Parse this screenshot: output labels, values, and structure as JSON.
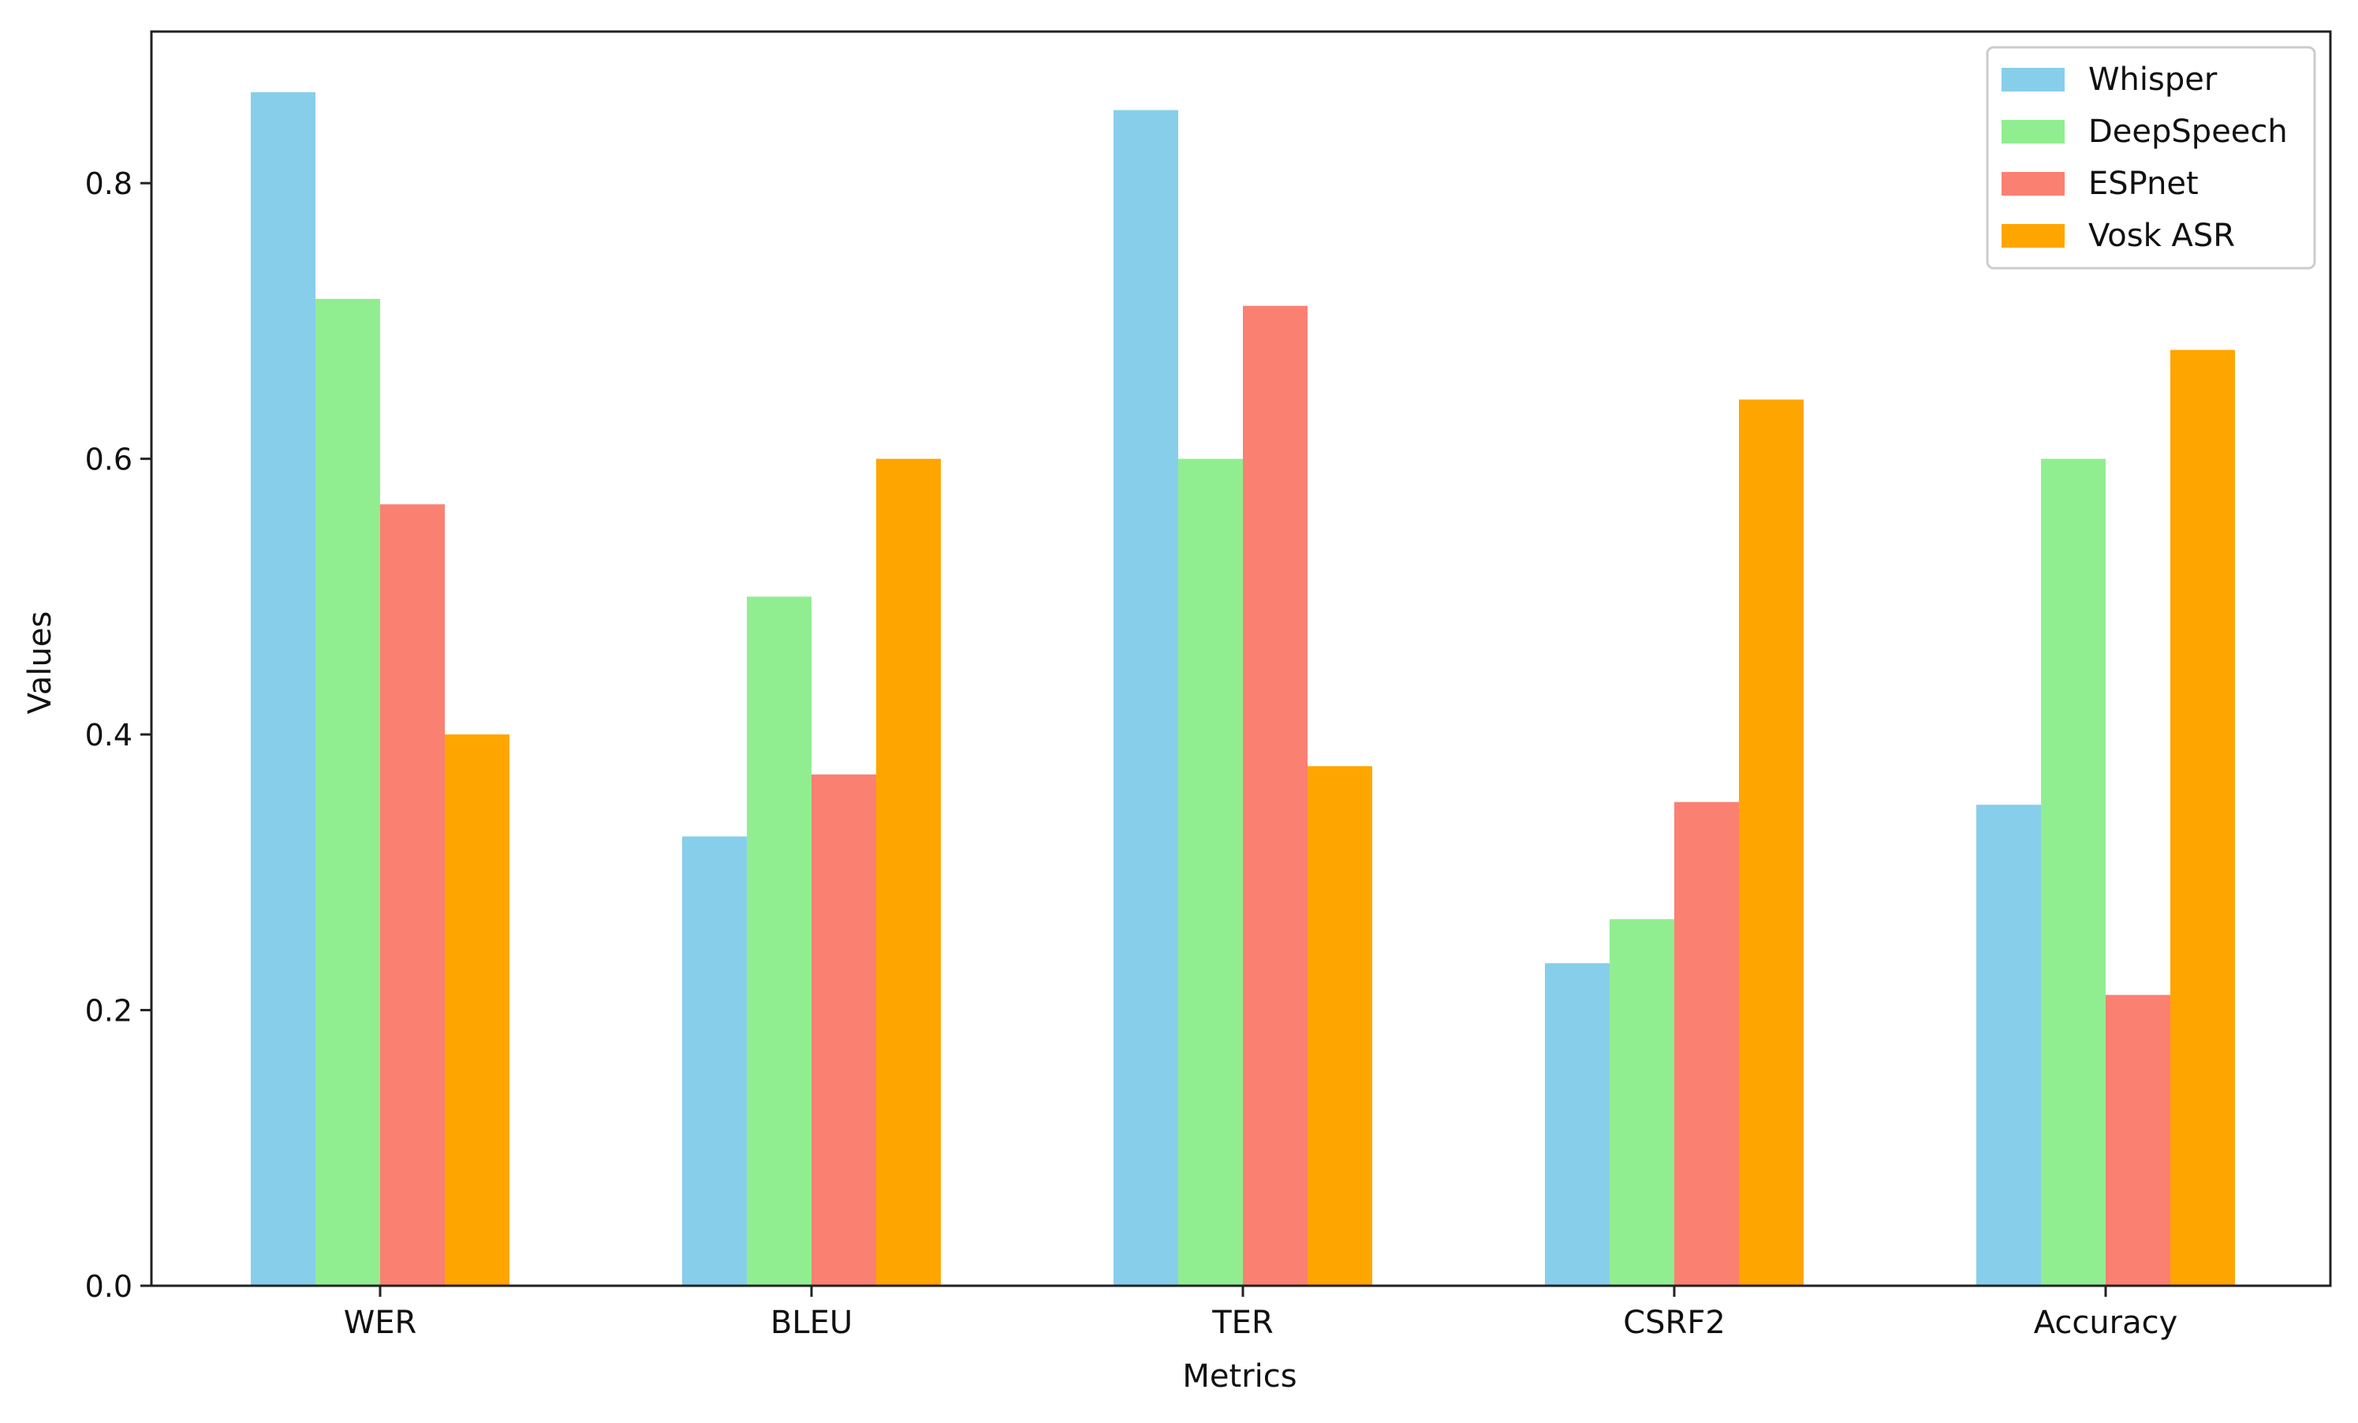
{
  "chart_data": {
    "type": "bar",
    "title": "",
    "xlabel": "Metrics",
    "ylabel": "Values",
    "categories": [
      "WER",
      "BLEU",
      "TER",
      "CSRF2",
      "Accuracy"
    ],
    "series": [
      {
        "name": "Whisper",
        "color": "#87ceeb",
        "values": [
          0.866,
          0.326,
          0.853,
          0.234,
          0.349
        ]
      },
      {
        "name": "DeepSpeech",
        "color": "#90ee90",
        "values": [
          0.716,
          0.5,
          0.6,
          0.266,
          0.6
        ]
      },
      {
        "name": "ESPnet",
        "color": "#fa8072",
        "values": [
          0.567,
          0.371,
          0.711,
          0.351,
          0.211
        ]
      },
      {
        "name": "Vosk ASR",
        "color": "#ffa500",
        "values": [
          0.4,
          0.6,
          0.377,
          0.643,
          0.679
        ]
      }
    ],
    "ylim": [
      0.0,
      0.91
    ],
    "yticks": [
      "0.0",
      "0.2",
      "0.4",
      "0.6",
      "0.8"
    ],
    "grid": false,
    "legend_position": "top-right"
  }
}
